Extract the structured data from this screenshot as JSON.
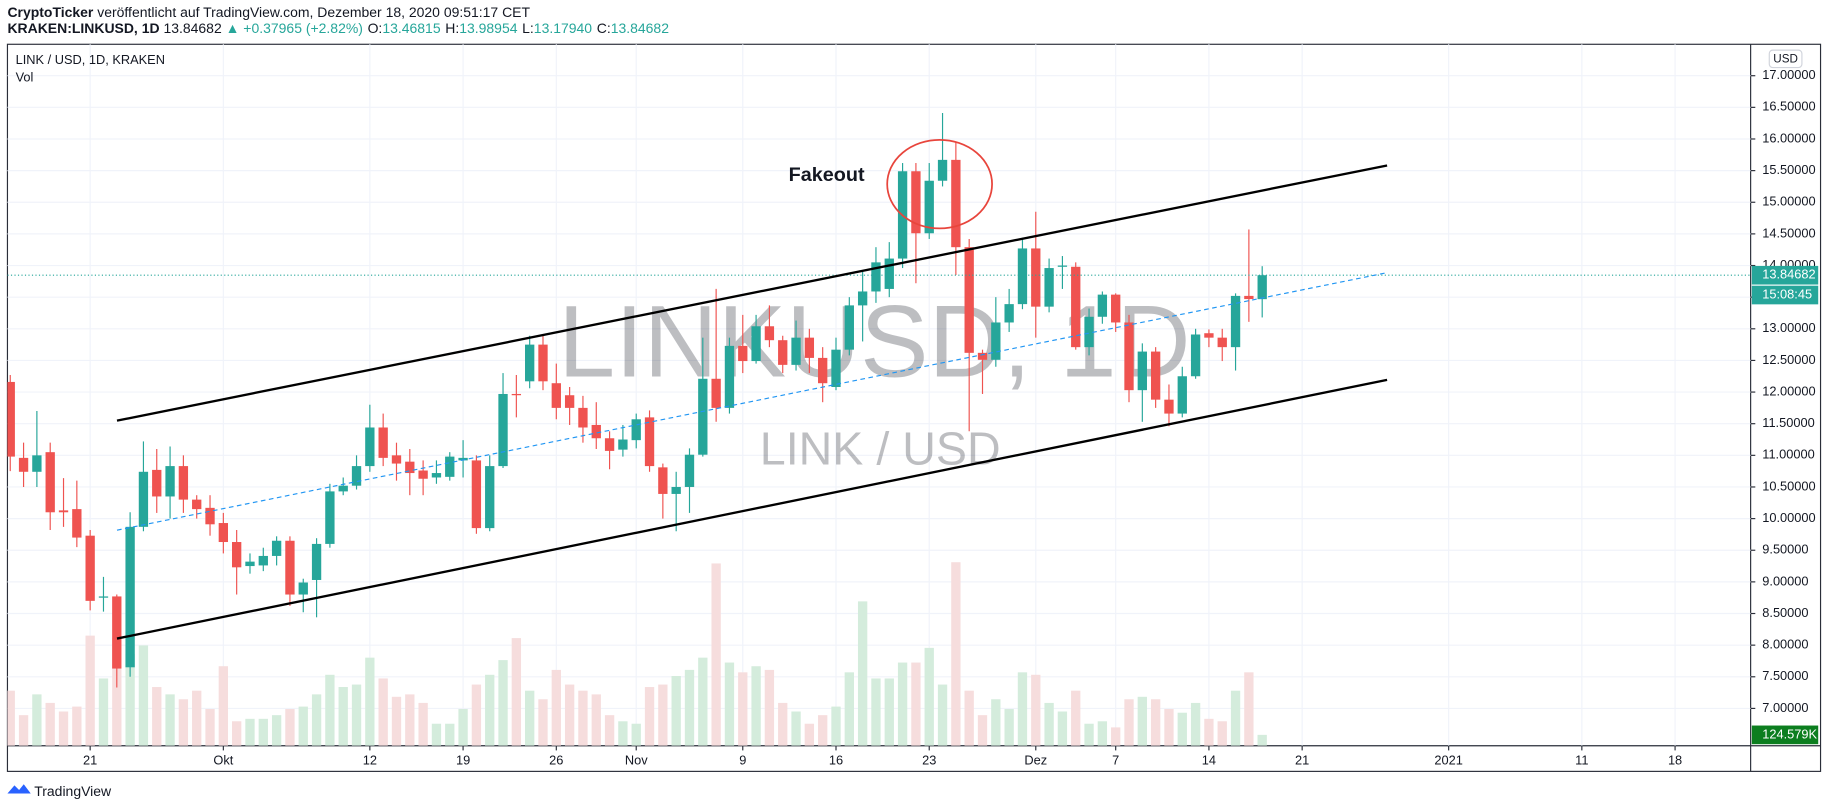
{
  "header": {
    "publisher": "CryptoTicker",
    "published": "veröffentlicht auf TradingView.com, Dezember 18, 2020 09:51:17 CET",
    "symbol": "KRAKEN:LINKUSD, 1D",
    "last": "13.84682",
    "change": "▲ +0.37965 (+2.82%)",
    "ohlc": [
      {
        "label": "O:",
        "value": "13.46815"
      },
      {
        "label": "H:",
        "value": "13.98954"
      },
      {
        "label": "L:",
        "value": "13.17940"
      },
      {
        "label": "C:",
        "value": "13.84682"
      }
    ]
  },
  "footer": {
    "brand": "TradingView"
  },
  "chart_data": {
    "type": "candlestick",
    "legend": [
      "LINK / USD, 1D, KRAKEN",
      "Vol"
    ],
    "watermark": "LINKUSD, 1D",
    "watermark_sub": "LINK / USD",
    "currency": "USD",
    "countdown": "15:08:45",
    "annotation": "Fakeout",
    "up_color": "#26a69a",
    "down_color": "#ef5350",
    "volume_up_color": "#d4ecdc",
    "volume_down_color": "#f6dddd",
    "grid": true,
    "x": [
      "2020-09-15",
      "2020-09-16",
      "2020-09-17",
      "2020-09-18",
      "2020-09-19",
      "2020-09-20",
      "2020-09-21",
      "2020-09-22",
      "2020-09-23",
      "2020-09-24",
      "2020-09-25",
      "2020-09-26",
      "2020-09-27",
      "2020-09-28",
      "2020-09-29",
      "2020-09-30",
      "2020-10-01",
      "2020-10-02",
      "2020-10-03",
      "2020-10-04",
      "2020-10-05",
      "2020-10-06",
      "2020-10-07",
      "2020-10-08",
      "2020-10-09",
      "2020-10-10",
      "2020-10-11",
      "2020-10-12",
      "2020-10-13",
      "2020-10-14",
      "2020-10-15",
      "2020-10-16",
      "2020-10-17",
      "2020-10-18",
      "2020-10-19",
      "2020-10-20",
      "2020-10-21",
      "2020-10-22",
      "2020-10-23",
      "2020-10-24",
      "2020-10-25",
      "2020-10-26",
      "2020-10-27",
      "2020-10-28",
      "2020-10-29",
      "2020-10-30",
      "2020-10-31",
      "2020-11-01",
      "2020-11-02",
      "2020-11-03",
      "2020-11-04",
      "2020-11-05",
      "2020-11-06",
      "2020-11-07",
      "2020-11-08",
      "2020-11-09",
      "2020-11-10",
      "2020-11-11",
      "2020-11-12",
      "2020-11-13",
      "2020-11-14",
      "2020-11-15",
      "2020-11-16",
      "2020-11-17",
      "2020-11-18",
      "2020-11-19",
      "2020-11-20",
      "2020-11-21",
      "2020-11-22",
      "2020-11-23",
      "2020-11-24",
      "2020-11-25",
      "2020-11-26",
      "2020-11-27",
      "2020-11-28",
      "2020-11-29",
      "2020-11-30",
      "2020-12-01",
      "2020-12-02",
      "2020-12-03",
      "2020-12-04",
      "2020-12-05",
      "2020-12-06",
      "2020-12-07",
      "2020-12-08",
      "2020-12-09",
      "2020-12-10",
      "2020-12-11",
      "2020-12-12",
      "2020-12-13",
      "2020-12-14",
      "2020-12-15",
      "2020-12-16",
      "2020-12-17",
      "2020-12-18"
    ],
    "open": [
      12.16,
      10.96,
      10.74,
      11.05,
      10.13,
      10.15,
      9.73,
      8.75,
      8.77,
      7.65,
      9.87,
      10.77,
      10.35,
      10.83,
      10.3,
      10.17,
      9.93,
      9.63,
      9.25,
      9.26,
      9.41,
      9.65,
      8.8,
      9.03,
      9.6,
      10.43,
      10.52,
      10.83,
      11.44,
      11.0,
      10.9,
      10.76,
      10.65,
      10.66,
      10.92,
      10.92,
      9.85,
      10.83,
      11.97,
      12.17,
      12.75,
      12.14,
      11.95,
      11.75,
      11.48,
      11.27,
      11.09,
      11.24,
      11.6,
      10.81,
      10.39,
      10.5,
      11.01,
      12.21,
      11.75,
      12.73,
      12.49,
      13.04,
      12.82,
      12.43,
      12.86,
      12.54,
      12.08,
      12.67,
      13.37,
      13.59,
      13.63,
      14.11,
      15.49,
      14.51,
      15.34,
      15.67,
      14.29,
      12.62,
      12.51,
      13.1,
      13.39,
      14.27,
      13.35,
      13.98,
      13.98,
      12.71,
      13.19,
      13.54,
      13.1,
      12.03,
      12.64,
      11.88,
      11.66,
      12.25,
      12.93,
      12.86,
      12.71,
      13.52,
      13.46815
    ],
    "high": [
      12.27,
      11.2,
      11.7,
      11.2,
      10.64,
      10.6,
      9.82,
      9.08,
      8.8,
      10.1,
      11.22,
      11.1,
      11.14,
      11.0,
      10.37,
      10.37,
      10.09,
      9.82,
      9.45,
      9.54,
      9.72,
      9.72,
      9.05,
      9.69,
      10.55,
      10.65,
      11.0,
      11.8,
      11.66,
      11.2,
      11.1,
      10.92,
      10.92,
      11.05,
      11.24,
      11.0,
      11.0,
      12.3,
      12.27,
      12.89,
      12.89,
      12.45,
      12.08,
      11.94,
      11.84,
      11.38,
      11.48,
      11.66,
      11.71,
      10.87,
      10.74,
      11.11,
      12.86,
      13.63,
      12.86,
      13.22,
      13.22,
      13.37,
      12.89,
      13.13,
      13.0,
      12.71,
      12.86,
      13.5,
      13.9,
      14.29,
      14.37,
      15.62,
      15.62,
      15.62,
      16.41,
      15.95,
      14.42,
      12.67,
      13.5,
      13.63,
      14.44,
      14.85,
      14.11,
      14.15,
      14.05,
      13.32,
      13.59,
      13.56,
      13.22,
      12.77,
      12.71,
      12.12,
      12.4,
      13.0,
      12.99,
      13.0,
      13.56,
      14.57,
      13.98954
    ],
    "low": [
      10.75,
      10.5,
      10.5,
      9.82,
      9.87,
      9.55,
      8.55,
      8.53,
      7.33,
      7.5,
      9.8,
      10.09,
      10.0,
      10.09,
      10.0,
      9.73,
      9.45,
      8.8,
      9.13,
      9.17,
      9.26,
      8.62,
      8.52,
      8.44,
      9.54,
      10.37,
      10.46,
      10.74,
      10.83,
      10.6,
      10.37,
      10.37,
      10.55,
      10.6,
      10.65,
      9.76,
      9.8,
      10.8,
      11.6,
      12.06,
      12.03,
      11.57,
      11.48,
      11.2,
      11.1,
      10.78,
      10.98,
      11.11,
      10.74,
      10.0,
      9.8,
      10.09,
      10.98,
      11.53,
      11.66,
      12.3,
      12.45,
      12.71,
      12.3,
      12.34,
      12.3,
      11.84,
      12.03,
      12.58,
      12.8,
      13.41,
      13.5,
      13.96,
      13.72,
      14.42,
      15.25,
      13.85,
      11.38,
      11.97,
      12.4,
      12.95,
      13.31,
      12.86,
      13.26,
      13.63,
      12.67,
      12.58,
      13.08,
      12.95,
      11.84,
      11.53,
      11.75,
      11.46,
      11.6,
      12.21,
      12.71,
      12.49,
      12.34,
      13.11,
      13.1794
    ],
    "close": [
      10.98,
      10.74,
      11.0,
      10.1,
      10.1,
      9.7,
      8.7,
      8.77,
      7.63,
      9.87,
      10.74,
      10.35,
      10.83,
      10.3,
      10.15,
      9.91,
      9.63,
      9.23,
      9.32,
      9.41,
      9.65,
      8.8,
      8.99,
      9.6,
      10.43,
      10.52,
      10.83,
      11.44,
      10.96,
      10.87,
      10.72,
      10.63,
      10.72,
      10.98,
      10.96,
      9.85,
      10.83,
      11.97,
      11.95,
      12.75,
      12.17,
      11.75,
      11.75,
      11.44,
      11.27,
      11.07,
      11.25,
      11.57,
      10.83,
      10.39,
      10.5,
      11.01,
      12.21,
      11.75,
      12.73,
      12.49,
      13.04,
      12.82,
      12.43,
      12.86,
      12.54,
      12.14,
      12.67,
      13.37,
      13.59,
      14.05,
      14.11,
      15.49,
      14.51,
      15.34,
      15.67,
      14.29,
      12.62,
      12.51,
      13.1,
      13.39,
      14.27,
      13.35,
      13.96,
      14.0,
      12.71,
      13.19,
      13.54,
      13.1,
      12.03,
      12.64,
      11.88,
      11.66,
      12.25,
      12.91,
      12.86,
      12.71,
      13.52,
      13.47,
      13.84682
    ],
    "volume": [
      630000,
      350000,
      588000,
      490000,
      392000,
      448000,
      1260000,
      770000,
      1232000,
      1050000,
      1148000,
      672000,
      588000,
      532000,
      630000,
      420000,
      910000,
      280000,
      308000,
      308000,
      350000,
      420000,
      448000,
      588000,
      812000,
      672000,
      700000,
      1008000,
      770000,
      560000,
      588000,
      490000,
      252000,
      252000,
      420000,
      700000,
      812000,
      980000,
      1232000,
      630000,
      532000,
      868000,
      700000,
      630000,
      588000,
      350000,
      280000,
      252000,
      672000,
      700000,
      798000,
      868000,
      1008000,
      2086000,
      952000,
      840000,
      910000,
      868000,
      490000,
      392000,
      252000,
      350000,
      448000,
      840000,
      1652000,
      770000,
      770000,
      952000,
      952000,
      1120000,
      700000,
      2100000,
      630000,
      350000,
      532000,
      420000,
      840000,
      812000,
      490000,
      392000,
      630000,
      252000,
      280000,
      210000,
      532000,
      560000,
      532000,
      420000,
      378000,
      490000,
      308000,
      280000,
      630000,
      840000,
      124579
    ],
    "volume_last_label": "124.579K",
    "xlim": [
      "2020-09-15",
      "2021-01-23"
    ],
    "xticks": [
      {
        "value": "2020-09-21",
        "label": "21"
      },
      {
        "value": "2020-10-01",
        "label": "Okt"
      },
      {
        "value": "2020-10-12",
        "label": "12"
      },
      {
        "value": "2020-10-19",
        "label": "19"
      },
      {
        "value": "2020-10-26",
        "label": "26"
      },
      {
        "value": "2020-11-01",
        "label": "Nov"
      },
      {
        "value": "2020-11-09",
        "label": "9"
      },
      {
        "value": "2020-11-16",
        "label": "16"
      },
      {
        "value": "2020-11-23",
        "label": "23"
      },
      {
        "value": "2020-12-01",
        "label": "Dez"
      },
      {
        "value": "2020-12-07",
        "label": "7"
      },
      {
        "value": "2020-12-14",
        "label": "14"
      },
      {
        "value": "2020-12-21",
        "label": "21"
      },
      {
        "value": "2021-01-01",
        "label": "2021"
      },
      {
        "value": "2021-01-11",
        "label": "11"
      },
      {
        "value": "2021-01-18",
        "label": "18"
      }
    ],
    "ylim": [
      6.41,
      17.46
    ],
    "yticks": [
      {
        "value": 7,
        "label": "7.00000"
      },
      {
        "value": 7.5,
        "label": "7.50000"
      },
      {
        "value": 8,
        "label": "8.00000"
      },
      {
        "value": 8.5,
        "label": "8.50000"
      },
      {
        "value": 9,
        "label": "9.00000"
      },
      {
        "value": 9.5,
        "label": "9.50000"
      },
      {
        "value": 10,
        "label": "10.00000"
      },
      {
        "value": 10.5,
        "label": "10.50000"
      },
      {
        "value": 11,
        "label": "11.00000"
      },
      {
        "value": 11.5,
        "label": "11.50000"
      },
      {
        "value": 12,
        "label": "12.00000"
      },
      {
        "value": 12.5,
        "label": "12.50000"
      },
      {
        "value": 13,
        "label": "13.00000"
      },
      {
        "value": 13.5,
        "label": "13.50000"
      },
      {
        "value": 14,
        "label": "14.00000"
      },
      {
        "value": 14.5,
        "label": "14.50000"
      },
      {
        "value": 15,
        "label": "15.00000"
      },
      {
        "value": 15.5,
        "label": "15.50000"
      },
      {
        "value": 16,
        "label": "16.00000"
      },
      {
        "value": 16.5,
        "label": "16.50000"
      },
      {
        "value": 17,
        "label": "17.00000"
      }
    ],
    "vlim": [
      0,
      8000000
    ]
  }
}
